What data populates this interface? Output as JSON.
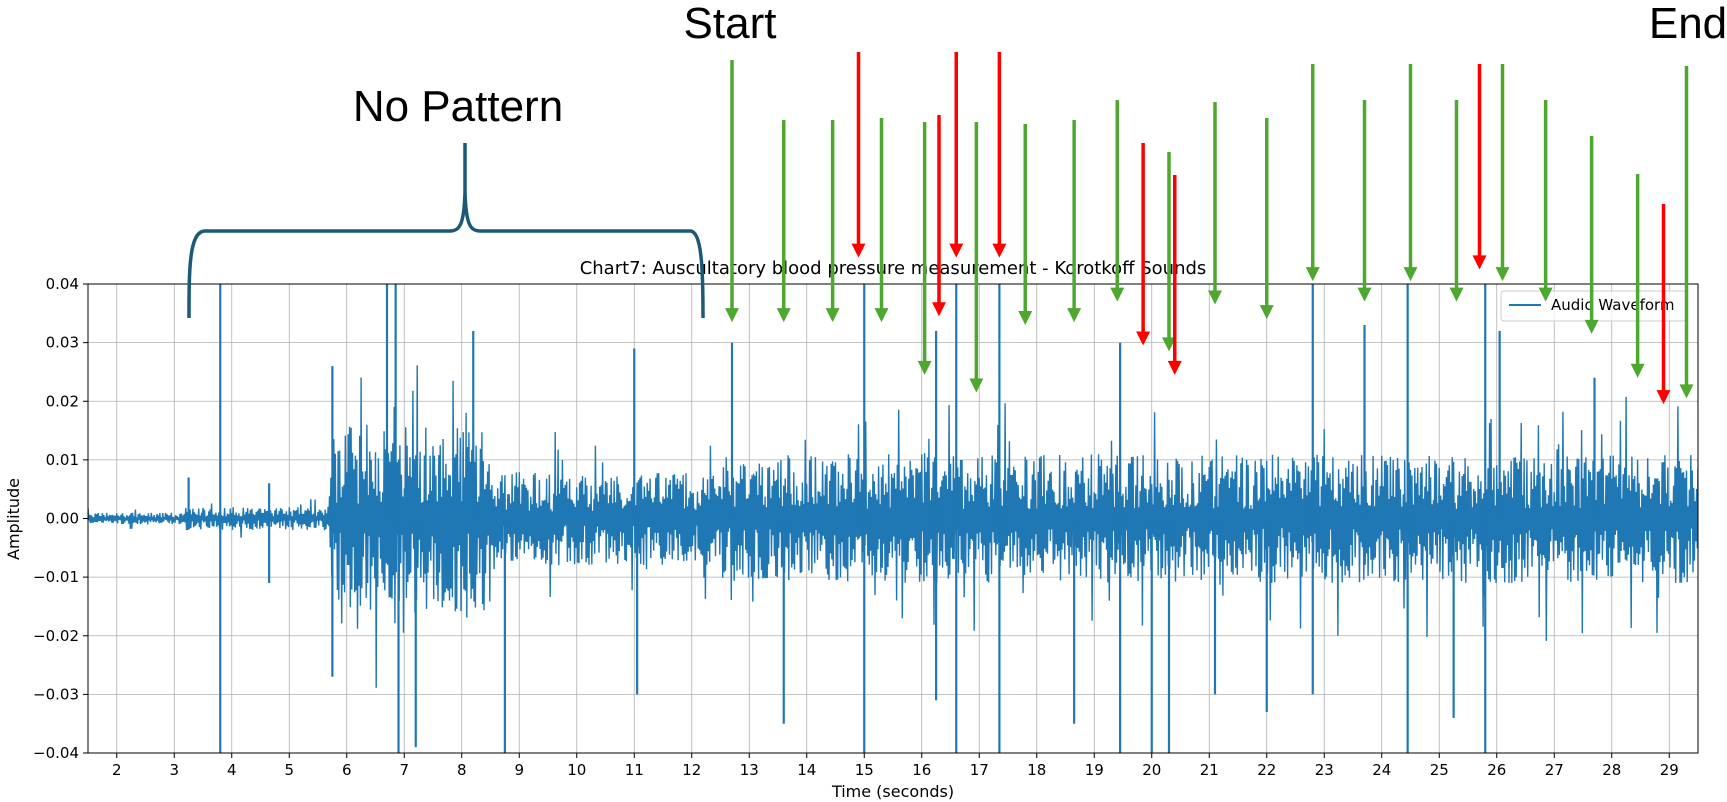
{
  "chart_data": {
    "type": "line",
    "title": "Chart7: Auscultatory blood pressure measurement - Korotkoff Sounds",
    "xlabel": "Time (seconds)",
    "ylabel": "Amplitude",
    "xlim": [
      1.5,
      29.5
    ],
    "ylim": [
      -0.04,
      0.04
    ],
    "x_ticks": [
      2,
      3,
      4,
      5,
      6,
      7,
      8,
      9,
      10,
      11,
      12,
      13,
      14,
      15,
      16,
      17,
      18,
      19,
      20,
      21,
      22,
      23,
      24,
      25,
      26,
      27,
      28,
      29
    ],
    "y_ticks": [
      0.04,
      0.03,
      0.02,
      0.01,
      0.0,
      -0.01,
      -0.02,
      -0.03,
      -0.04
    ],
    "y_tick_labels": [
      "0.04",
      "0.03",
      "0.02",
      "0.01",
      "0.00",
      "−0.01",
      "−0.02",
      "−0.03",
      "−0.04"
    ],
    "grid": true,
    "legend_position": "top-right",
    "series": [
      {
        "name": "Audio Waveform",
        "color": "#1f77b4",
        "segments": [
          {
            "start": 1.5,
            "end": 3.2,
            "amplitude": 0.001
          },
          {
            "start": 3.2,
            "end": 5.7,
            "amplitude": 0.002
          },
          {
            "start": 5.7,
            "end": 8.5,
            "amplitude": 0.016
          },
          {
            "start": 8.5,
            "end": 12.5,
            "amplitude": 0.008
          },
          {
            "start": 12.5,
            "end": 29.5,
            "amplitude": 0.011
          }
        ],
        "spikes": [
          {
            "x": 3.8,
            "y": 0.04
          },
          {
            "x": 3.8,
            "y": -0.04
          },
          {
            "x": 3.25,
            "y": 0.007
          },
          {
            "x": 4.65,
            "y": 0.006
          },
          {
            "x": 4.65,
            "y": -0.011
          },
          {
            "x": 5.75,
            "y": 0.026
          },
          {
            "x": 5.75,
            "y": -0.027
          },
          {
            "x": 6.7,
            "y": 0.04
          },
          {
            "x": 6.85,
            "y": 0.04
          },
          {
            "x": 6.9,
            "y": -0.04
          },
          {
            "x": 7.2,
            "y": -0.039
          },
          {
            "x": 8.2,
            "y": 0.032
          },
          {
            "x": 8.75,
            "y": -0.04
          },
          {
            "x": 11.0,
            "y": 0.029
          },
          {
            "x": 11.05,
            "y": -0.03
          },
          {
            "x": 12.7,
            "y": 0.03
          },
          {
            "x": 13.6,
            "y": -0.035
          },
          {
            "x": 15.0,
            "y": 0.04
          },
          {
            "x": 15.0,
            "y": -0.04
          },
          {
            "x": 16.25,
            "y": 0.032
          },
          {
            "x": 16.25,
            "y": -0.031
          },
          {
            "x": 16.6,
            "y": 0.04
          },
          {
            "x": 16.6,
            "y": -0.04
          },
          {
            "x": 17.35,
            "y": 0.04
          },
          {
            "x": 17.35,
            "y": -0.04
          },
          {
            "x": 18.65,
            "y": -0.035
          },
          {
            "x": 19.45,
            "y": 0.03
          },
          {
            "x": 19.45,
            "y": -0.04
          },
          {
            "x": 20.0,
            "y": -0.04
          },
          {
            "x": 20.3,
            "y": -0.04
          },
          {
            "x": 21.1,
            "y": -0.03
          },
          {
            "x": 22.0,
            "y": -0.033
          },
          {
            "x": 22.8,
            "y": 0.04
          },
          {
            "x": 22.8,
            "y": -0.03
          },
          {
            "x": 23.7,
            "y": 0.033
          },
          {
            "x": 24.45,
            "y": 0.04
          },
          {
            "x": 24.45,
            "y": -0.04
          },
          {
            "x": 25.25,
            "y": -0.034
          },
          {
            "x": 25.8,
            "y": 0.04
          },
          {
            "x": 25.8,
            "y": -0.04
          },
          {
            "x": 26.05,
            "y": 0.032
          },
          {
            "x": 27.7,
            "y": 0.024
          }
        ]
      }
    ],
    "annotations": {
      "labels": [
        "Start",
        "No Pattern",
        "End"
      ],
      "no_pattern_range": [
        3.25,
        12.2
      ],
      "start_x": 12.7,
      "end_x": 29.3,
      "green_arrows": [
        {
          "x": 12.7,
          "tip_y": 0.0335
        },
        {
          "x": 13.6,
          "tip_y": 0.0335
        },
        {
          "x": 14.45,
          "tip_y": 0.0335
        },
        {
          "x": 15.3,
          "tip_y": 0.0335
        },
        {
          "x": 16.05,
          "tip_y": 0.0245
        },
        {
          "x": 16.95,
          "tip_y": 0.0215
        },
        {
          "x": 17.8,
          "tip_y": 0.033
        },
        {
          "x": 18.65,
          "tip_y": 0.0335
        },
        {
          "x": 19.4,
          "tip_y": 0.037
        },
        {
          "x": 20.3,
          "tip_y": 0.0285
        },
        {
          "x": 21.1,
          "tip_y": 0.0365
        },
        {
          "x": 22.0,
          "tip_y": 0.034
        },
        {
          "x": 22.8,
          "tip_y": 0.0405
        },
        {
          "x": 23.7,
          "tip_y": 0.037
        },
        {
          "x": 24.5,
          "tip_y": 0.0405
        },
        {
          "x": 25.3,
          "tip_y": 0.037
        },
        {
          "x": 26.1,
          "tip_y": 0.0405
        },
        {
          "x": 26.85,
          "tip_y": 0.037
        },
        {
          "x": 27.65,
          "tip_y": 0.0315
        },
        {
          "x": 28.45,
          "tip_y": 0.024
        },
        {
          "x": 29.3,
          "tip_y": 0.0205
        }
      ],
      "red_arrows": [
        {
          "x": 14.9,
          "tip_y": 0.0445
        },
        {
          "x": 16.3,
          "tip_y": 0.0345
        },
        {
          "x": 16.6,
          "tip_y": 0.0445
        },
        {
          "x": 17.35,
          "tip_y": 0.0445
        },
        {
          "x": 19.85,
          "tip_y": 0.0295
        },
        {
          "x": 20.4,
          "tip_y": 0.0245
        },
        {
          "x": 25.7,
          "tip_y": 0.0425
        },
        {
          "x": 28.9,
          "tip_y": 0.0195
        }
      ]
    }
  }
}
